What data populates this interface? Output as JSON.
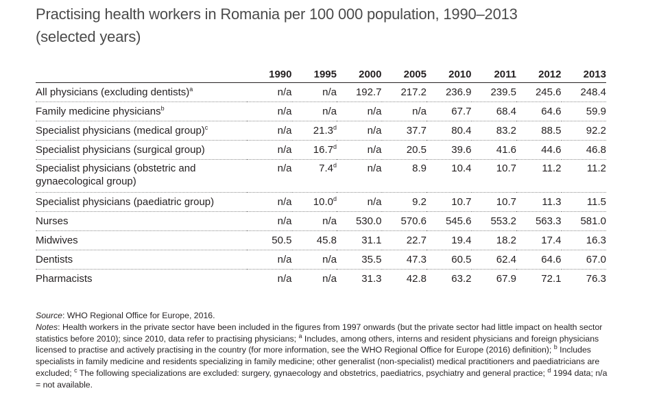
{
  "title": {
    "line1": "Practising health workers in Romania per 100 000 population, 1990–2013",
    "line2": "(selected years)"
  },
  "table": {
    "years": [
      "1990",
      "1995",
      "2000",
      "2005",
      "2010",
      "2011",
      "2012",
      "2013"
    ],
    "rows": [
      {
        "label": "All physicians (excluding dentists)",
        "sup": "a",
        "cells": [
          {
            "v": "n/a"
          },
          {
            "v": "n/a"
          },
          {
            "v": "192.7"
          },
          {
            "v": "217.2"
          },
          {
            "v": "236.9"
          },
          {
            "v": "239.5"
          },
          {
            "v": "245.6"
          },
          {
            "v": "248.4"
          }
        ]
      },
      {
        "label": "Family medicine physicians",
        "sup": "b",
        "cells": [
          {
            "v": "n/a"
          },
          {
            "v": "n/a"
          },
          {
            "v": "n/a"
          },
          {
            "v": "n/a"
          },
          {
            "v": "67.7"
          },
          {
            "v": "68.4"
          },
          {
            "v": "64.6"
          },
          {
            "v": "59.9"
          }
        ]
      },
      {
        "label": "Specialist physicians (medical group)",
        "sup": "c",
        "cells": [
          {
            "v": "n/a"
          },
          {
            "v": "21.3",
            "s": "d"
          },
          {
            "v": "n/a"
          },
          {
            "v": "37.7"
          },
          {
            "v": "80.4"
          },
          {
            "v": "83.2"
          },
          {
            "v": "88.5"
          },
          {
            "v": "92.2"
          }
        ]
      },
      {
        "label": "Specialist physicians (surgical group)",
        "sup": "",
        "cells": [
          {
            "v": "n/a"
          },
          {
            "v": "16.7",
            "s": "d"
          },
          {
            "v": "n/a"
          },
          {
            "v": "20.5"
          },
          {
            "v": "39.6"
          },
          {
            "v": "41.6"
          },
          {
            "v": "44.6"
          },
          {
            "v": "46.8"
          }
        ]
      },
      {
        "label": "Specialist physicians (obstetric and gynaecological group)",
        "sup": "",
        "tall": true,
        "cells": [
          {
            "v": "n/a"
          },
          {
            "v": "7.4",
            "s": "d"
          },
          {
            "v": "n/a"
          },
          {
            "v": "8.9"
          },
          {
            "v": "10.4"
          },
          {
            "v": "10.7"
          },
          {
            "v": "11.2"
          },
          {
            "v": "11.2"
          }
        ]
      },
      {
        "label": "Specialist physicians (paediatric group)",
        "sup": "",
        "cells": [
          {
            "v": "n/a"
          },
          {
            "v": "10.0",
            "s": "d"
          },
          {
            "v": "n/a"
          },
          {
            "v": "9.2"
          },
          {
            "v": "10.7"
          },
          {
            "v": "10.7"
          },
          {
            "v": "11.3"
          },
          {
            "v": "11.5"
          }
        ]
      },
      {
        "label": "Nurses",
        "sup": "",
        "cells": [
          {
            "v": "n/a"
          },
          {
            "v": "n/a"
          },
          {
            "v": "530.0"
          },
          {
            "v": "570.6"
          },
          {
            "v": "545.6"
          },
          {
            "v": "553.2"
          },
          {
            "v": "563.3"
          },
          {
            "v": "581.0"
          }
        ]
      },
      {
        "label": "Midwives",
        "sup": "",
        "cells": [
          {
            "v": "50.5"
          },
          {
            "v": "45.8"
          },
          {
            "v": "31.1"
          },
          {
            "v": "22.7"
          },
          {
            "v": "19.4"
          },
          {
            "v": "18.2"
          },
          {
            "v": "17.4"
          },
          {
            "v": "16.3"
          }
        ]
      },
      {
        "label": "Dentists",
        "sup": "",
        "cells": [
          {
            "v": "n/a"
          },
          {
            "v": "n/a"
          },
          {
            "v": "35.5"
          },
          {
            "v": "47.3"
          },
          {
            "v": "60.5"
          },
          {
            "v": "62.4"
          },
          {
            "v": "64.6"
          },
          {
            "v": "67.0"
          }
        ]
      },
      {
        "label": "Pharmacists",
        "sup": "",
        "cells": [
          {
            "v": "n/a"
          },
          {
            "v": "n/a"
          },
          {
            "v": "31.3"
          },
          {
            "v": "42.8"
          },
          {
            "v": "63.2"
          },
          {
            "v": "67.9"
          },
          {
            "v": "72.1"
          },
          {
            "v": "76.3"
          }
        ]
      }
    ]
  },
  "footer": {
    "source_label": "Source",
    "source_text": ": WHO Regional Office for Europe, 2016.",
    "notes_label": "Notes",
    "notes_text_1": ": Health workers in the private sector have been included in the figures from 1997 onwards (but the private sector had little impact on health sector statistics before 2010); since 2010, data refer to practising physicians; ",
    "note_a_mark": "a",
    "notes_text_2": " Includes, among others, interns and resident physicians and foreign physicians licensed to practise and actively practising in the country (for more information, see the WHO Regional Office for Europe (2016) definition); ",
    "note_b_mark": "b",
    "notes_text_3": " Includes specialists in family medicine and residents specializing in family medicine; other generalist (non-specialist) medical practitioners and paediatricians are excluded; ",
    "note_c_mark": "c",
    "notes_text_4": " The following specializations are excluded: surgery, gynaecology and obstetrics, paediatrics, psychiatry and general practice; ",
    "note_d_mark": "d",
    "notes_text_5": " 1994 data; n/a = not available."
  }
}
